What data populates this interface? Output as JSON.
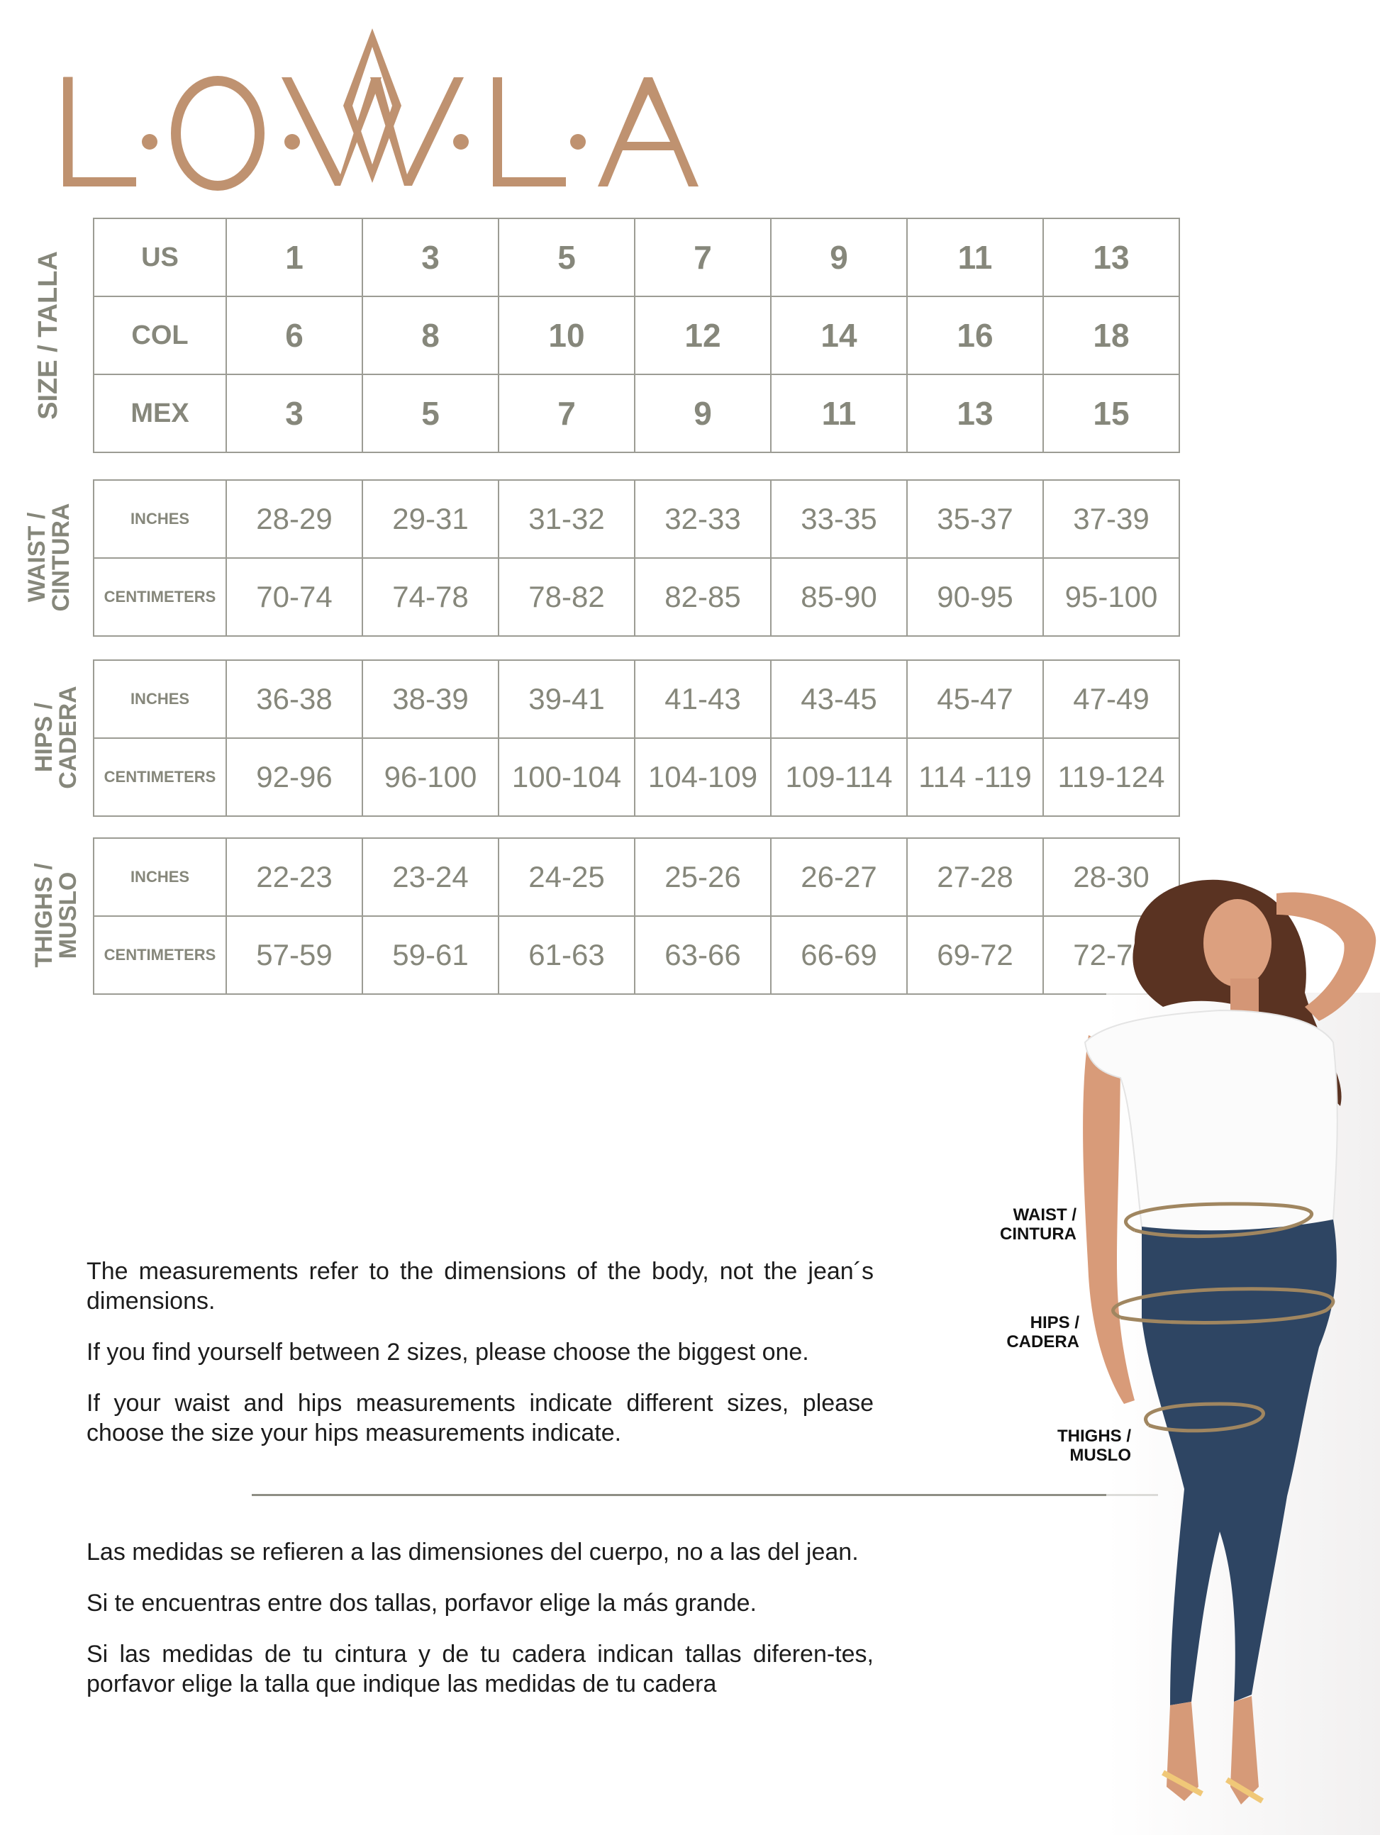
{
  "brand": {
    "logo_text": "L·O·W·L·A",
    "color": "#bf9270"
  },
  "size_table": {
    "group_label": "SIZE / TALLA",
    "rows": [
      {
        "label": "US",
        "values": [
          "1",
          "3",
          "5",
          "7",
          "9",
          "11",
          "13"
        ]
      },
      {
        "label": "COL",
        "values": [
          "6",
          "8",
          "10",
          "12",
          "14",
          "16",
          "18"
        ]
      },
      {
        "label": "MEX",
        "values": [
          "3",
          "5",
          "7",
          "9",
          "11",
          "13",
          "15"
        ]
      }
    ]
  },
  "measurement_tables": [
    {
      "group_label_1": "WAIST /",
      "group_label_2": "CINTURA",
      "rows": [
        {
          "label": "INCHES",
          "values": [
            "28-29",
            "29-31",
            "31-32",
            "32-33",
            "33-35",
            "35-37",
            "37-39"
          ]
        },
        {
          "label": "CENTIMETERS",
          "values": [
            "70-74",
            "74-78",
            "78-82",
            "82-85",
            "85-90",
            "90-95",
            "95-100"
          ]
        }
      ]
    },
    {
      "group_label_1": "HIPS /",
      "group_label_2": "CADERA",
      "rows": [
        {
          "label": "INCHES",
          "values": [
            "36-38",
            "38-39",
            "39-41",
            "41-43",
            "43-45",
            "45-47",
            "47-49"
          ]
        },
        {
          "label": "CENTIMETERS",
          "values": [
            "92-96",
            "96-100",
            "100-104",
            "104-109",
            "109-114",
            "114 -119",
            "119-124"
          ]
        }
      ]
    },
    {
      "group_label_1": "THIGHS /",
      "group_label_2": "MUSLO",
      "rows": [
        {
          "label": "INCHES",
          "values": [
            "22-23",
            "23-24",
            "24-25",
            "25-26",
            "26-27",
            "27-28",
            "28-30"
          ]
        },
        {
          "label": "CENTIMETERS",
          "values": [
            "57-59",
            "59-61",
            "61-63",
            "63-66",
            "66-69",
            "69-72",
            "72-75"
          ]
        }
      ]
    }
  ],
  "notes_en": [
    "The measurements refer to the dimensions of the body, not the jean´s dimensions.",
    "If you find yourself between 2 sizes, please choose the biggest one.",
    "If your waist and hips measurements indicate different sizes, please choose the size your hips measurements indicate."
  ],
  "notes_es": [
    "Las medidas se refieren a las dimensiones del cuerpo, no a las del jean.",
    "Si te encuentras entre dos tallas, porfavor elige la más grande.",
    "Si las medidas de tu cintura y de tu cadera indican tallas diferen-tes, porfavor elige la talla que indique las medidas de tu cadera"
  ],
  "body_labels": {
    "waist_1": "WAIST /",
    "waist_2": "CINTURA",
    "hips_1": "HIPS /",
    "hips_2": "CADERA",
    "thighs_1": "THIGHS /",
    "thighs_2": "MUSLO"
  },
  "colors": {
    "table_text": "#86877b",
    "table_border": "#9c9c94",
    "ring": "#a08660",
    "denim": "#2e4563"
  }
}
